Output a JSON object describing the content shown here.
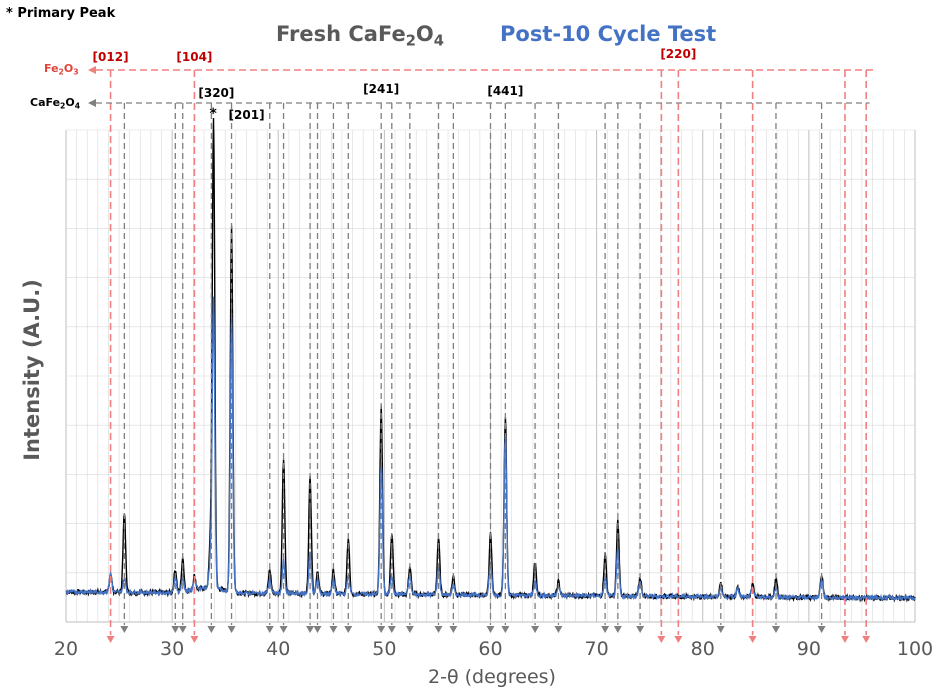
{
  "note": "* Primary Peak",
  "legend": {
    "fresh_prefix": "Fresh CaFe",
    "fresh_sub1": "2",
    "fresh_mid": "O",
    "fresh_sub2": "4",
    "post": "Post-10 Cycle Test"
  },
  "phases": {
    "fe2o3": {
      "a": "Fe",
      "s1": "2",
      "b": "O",
      "s2": "3"
    },
    "cafe2o4": {
      "a": "CaFe",
      "s1": "2",
      "b": "O",
      "s2": "4"
    }
  },
  "colors": {
    "fresh": "#000000",
    "post": "#4472c4",
    "fe2o3": "#f08080",
    "cafe2o4": "#7f7f7f",
    "grid": "#d9d9d9"
  },
  "chart_data": {
    "type": "line",
    "xlabel": "2-θ (degrees)",
    "ylabel": "Intensity (A.U.)",
    "xlim": [
      20,
      100
    ],
    "ylim": [
      0,
      100
    ],
    "xticks": [
      "20",
      "30",
      "40",
      "50",
      "60",
      "70",
      "80",
      "90",
      "100"
    ],
    "primary_peak_marker": {
      "x": 33.9,
      "label": "*"
    },
    "reference_lines": {
      "fe2o3": [
        24.2,
        32.1,
        76.1,
        77.7,
        84.7,
        93.4,
        95.4
      ],
      "cafe2o4": [
        25.5,
        30.3,
        31.0,
        33.7,
        35.6,
        39.2,
        40.5,
        43.0,
        43.7,
        45.2,
        46.6,
        49.7,
        50.7,
        52.4,
        55.1,
        56.5,
        60.0,
        61.4,
        64.2,
        66.4,
        70.8,
        72.0,
        74.1,
        81.7,
        86.9,
        91.2
      ]
    },
    "miller_labels": [
      {
        "label": "[012]",
        "x": 24.2,
        "phase": "Fe2O3"
      },
      {
        "label": "[104]",
        "x": 32.1,
        "phase": "Fe2O3"
      },
      {
        "label": "[220]",
        "x": 77.7,
        "phase": "Fe2O3"
      },
      {
        "label": "[320]",
        "x": 33.7,
        "phase": "CaFe2O4"
      },
      {
        "label": "[201]",
        "x": 35.6,
        "phase": "CaFe2O4"
      },
      {
        "label": "[241]",
        "x": 49.7,
        "phase": "CaFe2O4"
      },
      {
        "label": "[441]",
        "x": 61.4,
        "phase": "CaFe2O4"
      }
    ],
    "series": [
      {
        "name": "Fresh CaFe2O4",
        "peaks": [
          [
            24.2,
            4
          ],
          [
            25.5,
            17
          ],
          [
            30.3,
            5
          ],
          [
            31.0,
            7
          ],
          [
            32.1,
            3
          ],
          [
            33.6,
            9
          ],
          [
            33.9,
            100
          ],
          [
            35.6,
            78
          ],
          [
            39.2,
            5
          ],
          [
            40.5,
            29
          ],
          [
            43.0,
            25
          ],
          [
            43.7,
            5
          ],
          [
            45.2,
            5
          ],
          [
            46.6,
            12
          ],
          [
            49.7,
            40
          ],
          [
            50.7,
            13
          ],
          [
            52.4,
            6
          ],
          [
            55.1,
            12
          ],
          [
            56.5,
            4
          ],
          [
            60.0,
            13
          ],
          [
            61.4,
            38
          ],
          [
            64.2,
            7
          ],
          [
            66.4,
            3
          ],
          [
            70.8,
            9
          ],
          [
            72.0,
            16
          ],
          [
            74.1,
            4
          ],
          [
            81.7,
            3
          ],
          [
            83.3,
            2
          ],
          [
            84.7,
            3
          ],
          [
            86.9,
            4
          ],
          [
            91.2,
            5
          ]
        ]
      },
      {
        "name": "Post-10 Cycle Test",
        "peaks": [
          [
            24.2,
            4
          ],
          [
            25.5,
            3
          ],
          [
            30.3,
            3
          ],
          [
            31.0,
            3
          ],
          [
            32.1,
            2
          ],
          [
            33.6,
            6
          ],
          [
            33.9,
            62
          ],
          [
            35.6,
            58
          ],
          [
            39.2,
            3
          ],
          [
            40.5,
            7
          ],
          [
            43.0,
            9
          ],
          [
            43.7,
            3
          ],
          [
            45.2,
            3
          ],
          [
            46.6,
            4
          ],
          [
            49.7,
            28
          ],
          [
            50.7,
            4
          ],
          [
            52.4,
            4
          ],
          [
            55.1,
            6
          ],
          [
            56.5,
            2
          ],
          [
            60.0,
            7
          ],
          [
            61.4,
            34
          ],
          [
            64.2,
            3
          ],
          [
            66.4,
            2
          ],
          [
            70.8,
            4
          ],
          [
            72.0,
            10
          ],
          [
            74.1,
            3
          ],
          [
            81.7,
            2
          ],
          [
            83.3,
            2
          ],
          [
            84.7,
            2
          ],
          [
            86.9,
            2
          ],
          [
            91.2,
            4
          ]
        ]
      }
    ]
  }
}
